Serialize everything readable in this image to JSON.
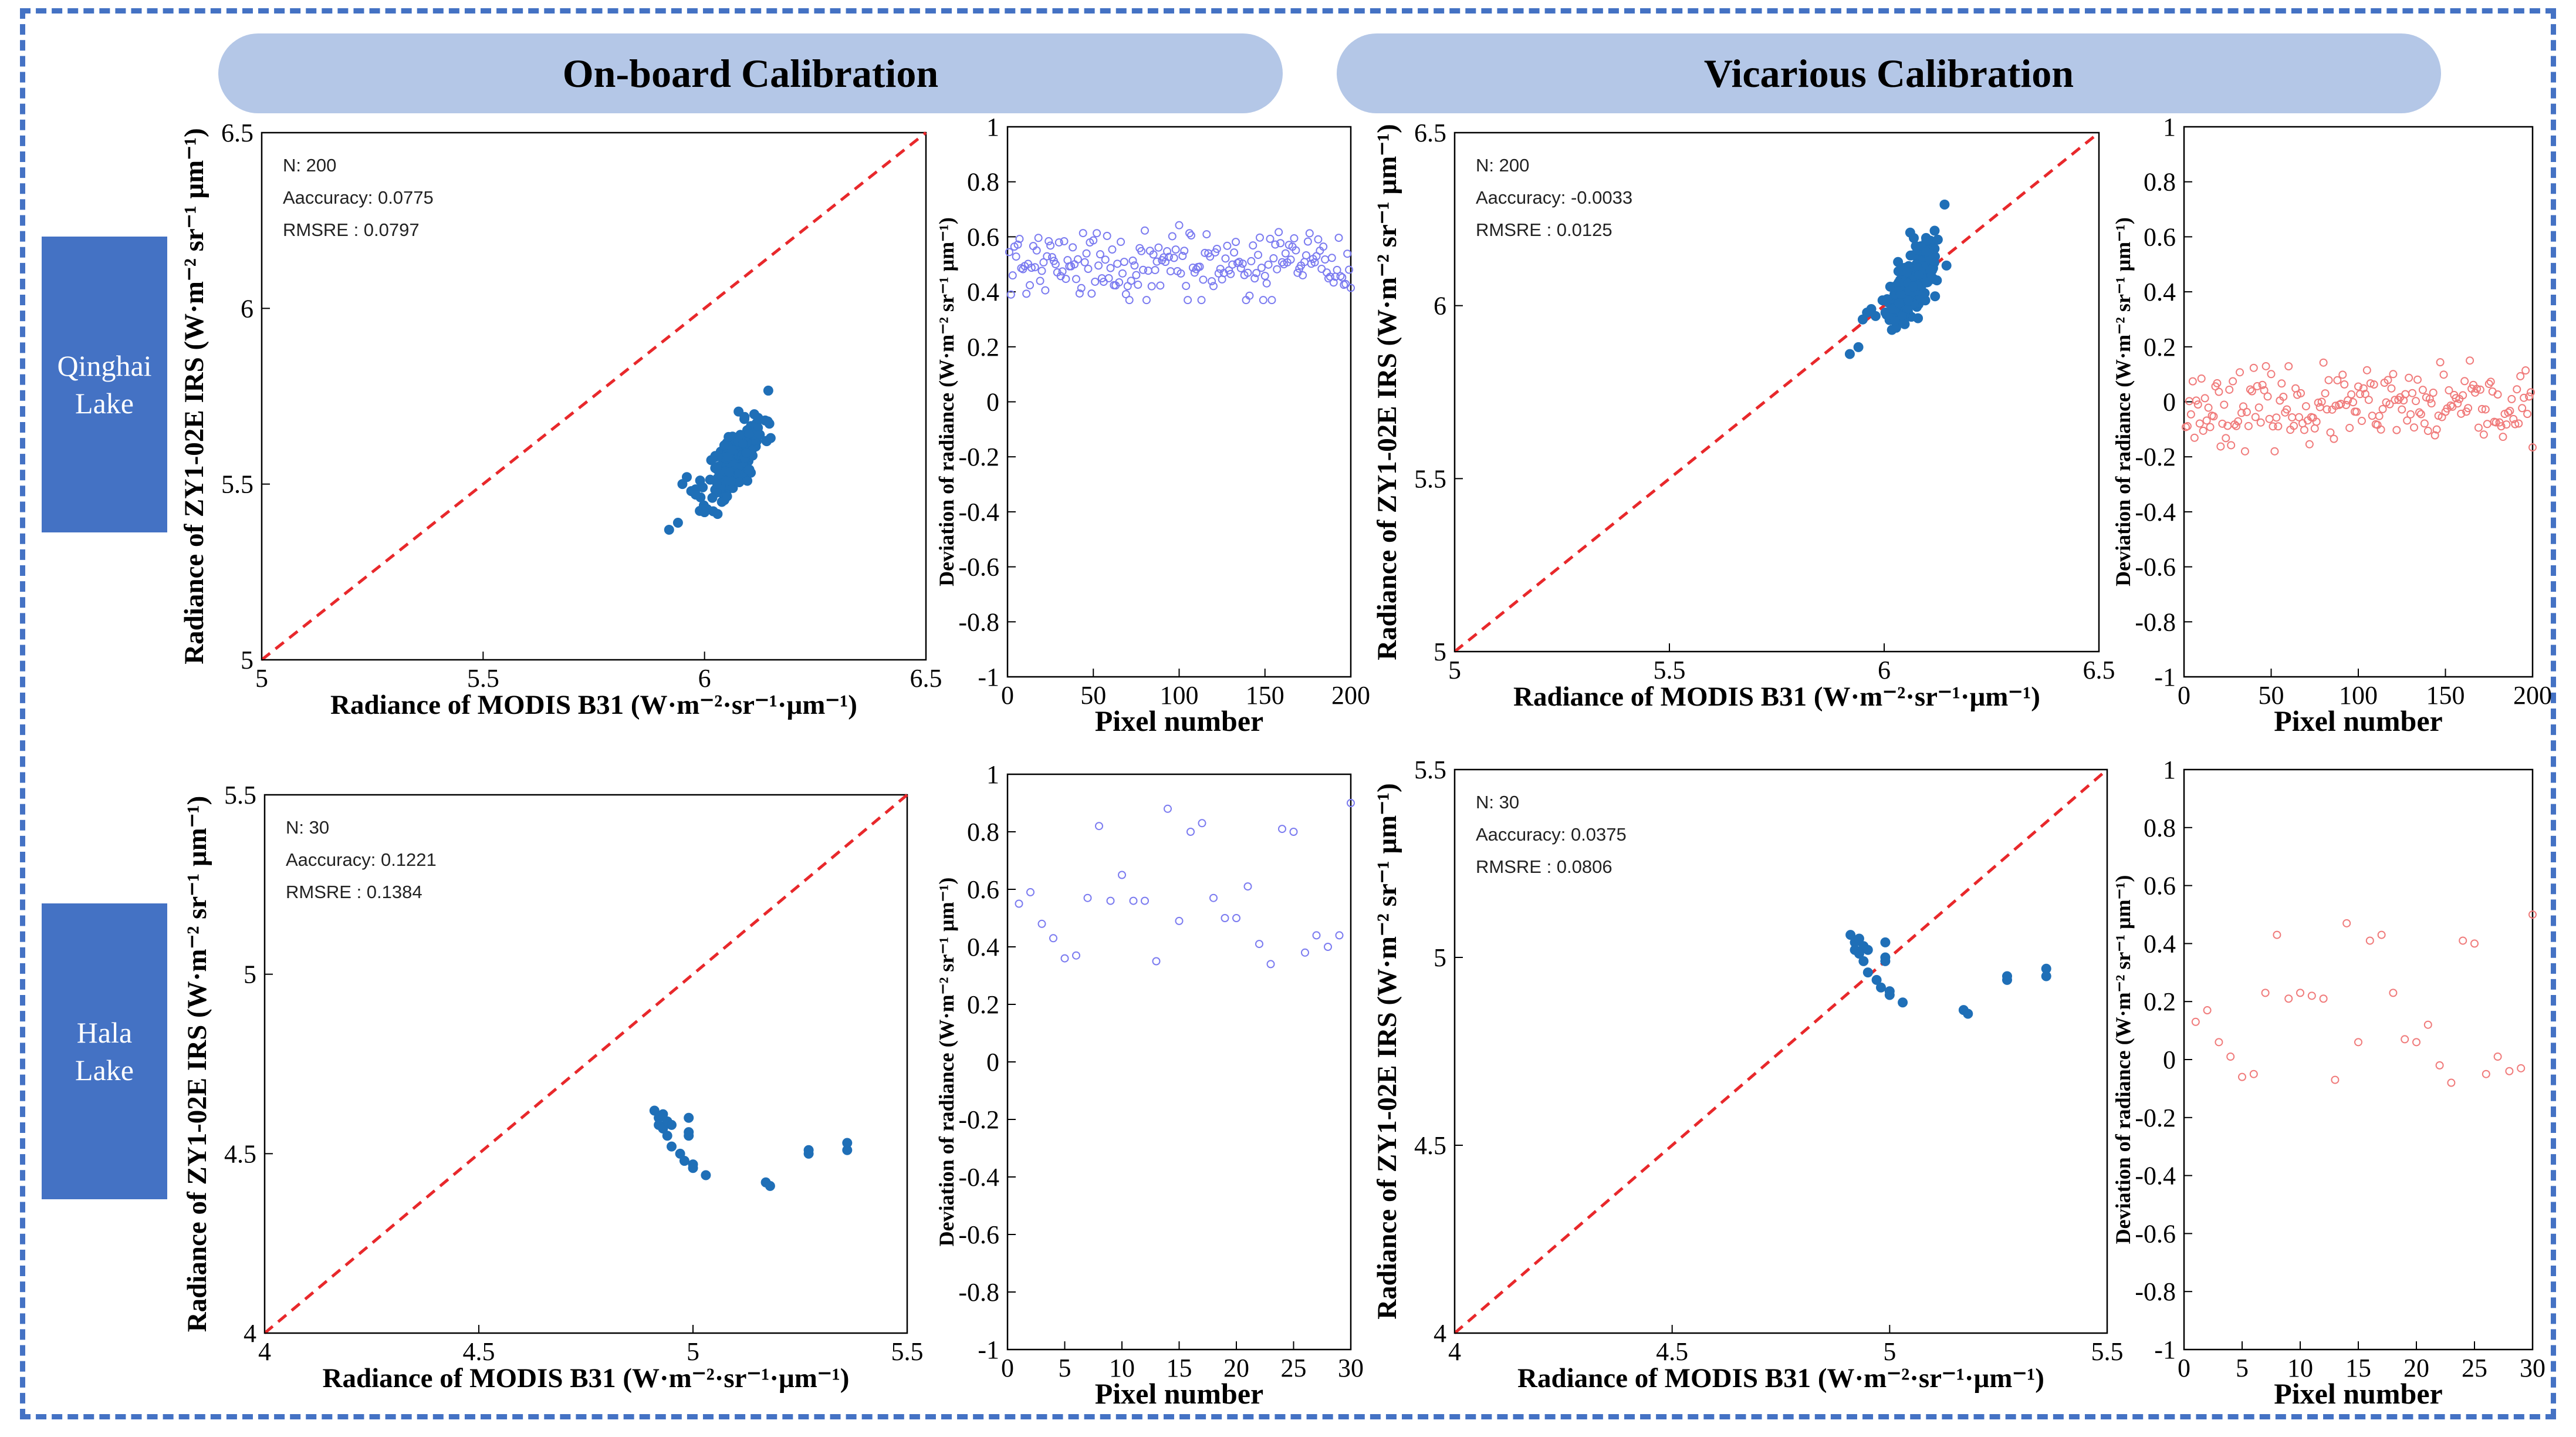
{
  "headers": {
    "onboard": "On-board Calibration",
    "vicarious": "Vicarious Calibration"
  },
  "rows": {
    "qinghai": [
      "Qinghai",
      "Lake"
    ],
    "hala": [
      "Hala",
      "Lake"
    ]
  },
  "colors": {
    "frame": "#4472c4",
    "header_fill": "#b4c7e7",
    "row_label_fill": "#4472c4",
    "scatter": "#1f6fb7",
    "identity_line": "#e8282b",
    "deviation_onboard": "#7b7bf0",
    "deviation_vicarious": "#f07b7b"
  },
  "chart_data": [
    {
      "id": "qinghai-onboard-scatter",
      "type": "scatter",
      "xlabel": "Radiance of MODIS B31 (W·m⁻²·sr⁻¹·μm⁻¹)",
      "ylabel": "Radiance of ZY1-02E IRS (W·m⁻² sr⁻¹ μm⁻¹)",
      "xlim": [
        5,
        6.5
      ],
      "ylim": [
        5,
        6.5
      ],
      "xticks": [
        5,
        5.5,
        6,
        6.5
      ],
      "yticks": [
        5,
        5.5,
        6,
        6.5
      ],
      "identity_line": true,
      "stats": [
        "N: 200",
        "Aaccuracy: 0.0775",
        "RMSRE : 0.0797"
      ],
      "cluster": {
        "n": 200,
        "x_center": 6.07,
        "x_spread": 0.032,
        "y_center": 5.57,
        "y_spread": 0.075,
        "slope": 1.4,
        "seed": 11
      },
      "points": [
        [
          5.92,
          5.37
        ],
        [
          5.94,
          5.39
        ],
        [
          5.95,
          5.5
        ],
        [
          5.96,
          5.52
        ],
        [
          5.97,
          5.48
        ],
        [
          5.98,
          5.47
        ],
        [
          5.99,
          5.51
        ],
        [
          6.0,
          5.42
        ]
      ]
    },
    {
      "id": "qinghai-onboard-deviation",
      "type": "scatter",
      "xlabel": "Pixel number",
      "ylabel": "Deviation of radiance (W·m⁻² sr⁻¹ μm⁻¹)",
      "xlim": [
        0,
        200
      ],
      "ylim": [
        -1,
        1
      ],
      "xticks": [
        0,
        50,
        100,
        150,
        200
      ],
      "yticks": [
        -1,
        -0.8,
        -0.6,
        -0.4,
        -0.2,
        0,
        0.2,
        0.4,
        0.6,
        0.8,
        1
      ],
      "marker": "open-circle",
      "noise": {
        "n": 200,
        "center": 0.5,
        "spread": 0.065,
        "min": 0.37,
        "max": 0.66,
        "seed": 21
      }
    },
    {
      "id": "qinghai-vicarious-scatter",
      "type": "scatter",
      "xlabel": "Radiance of MODIS B31 (W·m⁻²·sr⁻¹·μm⁻¹)",
      "ylabel": "Radiance of ZY1-02E IRS (W·m⁻² sr⁻¹ μm⁻¹)",
      "xlim": [
        5,
        6.5
      ],
      "ylim": [
        5,
        6.5
      ],
      "xticks": [
        5,
        5.5,
        6,
        6.5
      ],
      "yticks": [
        5,
        5.5,
        6,
        6.5
      ],
      "identity_line": true,
      "stats": [
        "N: 200",
        "Aaccuracy: -0.0033",
        "RMSRE : 0.0125"
      ],
      "cluster": {
        "n": 200,
        "x_center": 6.07,
        "x_spread": 0.032,
        "y_center": 6.07,
        "y_spread": 0.075,
        "slope": 1.4,
        "seed": 13
      },
      "points": [
        [
          5.92,
          5.86
        ],
        [
          5.94,
          5.88
        ],
        [
          5.95,
          5.96
        ],
        [
          5.96,
          5.98
        ],
        [
          5.97,
          5.99
        ],
        [
          5.98,
          5.97
        ]
      ]
    },
    {
      "id": "qinghai-vicarious-deviation",
      "type": "scatter",
      "xlabel": "Pixel number",
      "ylabel": "Deviation of radiance (W·m⁻² sr⁻¹ μm⁻¹)",
      "xlim": [
        0,
        200
      ],
      "ylim": [
        -1,
        1
      ],
      "xticks": [
        0,
        50,
        100,
        150,
        200
      ],
      "yticks": [
        -1,
        -0.8,
        -0.6,
        -0.4,
        -0.2,
        0,
        0.2,
        0.4,
        0.6,
        0.8,
        1
      ],
      "marker": "open-circle",
      "noise": {
        "n": 200,
        "center": -0.02,
        "spread": 0.065,
        "min": -0.18,
        "max": 0.15,
        "seed": 23
      }
    },
    {
      "id": "hala-onboard-scatter",
      "type": "scatter",
      "xlabel": "Radiance of MODIS B31 (W·m⁻²·sr⁻¹·μm⁻¹)",
      "ylabel": "Radiance of ZY1-02E IRS (W·m⁻² sr⁻¹ μm⁻¹)",
      "xlim": [
        4,
        5.5
      ],
      "ylim": [
        4,
        5.5
      ],
      "xticks": [
        4,
        4.5,
        5,
        5.5
      ],
      "yticks": [
        4,
        4.5,
        5,
        5.5
      ],
      "identity_line": true,
      "stats": [
        "N: 30",
        "Aaccuracy: 0.1221",
        "RMSRE : 0.1384"
      ],
      "points": [
        [
          4.91,
          4.62
        ],
        [
          4.92,
          4.6
        ],
        [
          4.92,
          4.58
        ],
        [
          4.93,
          4.61
        ],
        [
          4.93,
          4.57
        ],
        [
          4.94,
          4.59
        ],
        [
          4.94,
          4.55
        ],
        [
          4.95,
          4.52
        ],
        [
          4.95,
          4.58
        ],
        [
          4.97,
          4.5
        ],
        [
          4.98,
          4.48
        ],
        [
          4.99,
          4.55
        ],
        [
          4.99,
          4.56
        ],
        [
          4.99,
          4.6
        ],
        [
          5.0,
          4.47
        ],
        [
          5.0,
          4.46
        ],
        [
          5.03,
          4.44
        ],
        [
          5.17,
          4.42
        ],
        [
          5.18,
          4.41
        ],
        [
          5.27,
          4.5
        ],
        [
          5.27,
          4.51
        ],
        [
          5.36,
          4.51
        ],
        [
          5.36,
          4.53
        ]
      ]
    },
    {
      "id": "hala-onboard-deviation",
      "type": "scatter",
      "xlabel": "Pixel number",
      "ylabel": "Deviation of radiance (W·m⁻² sr⁻¹ μm⁻¹)",
      "xlim": [
        0,
        30
      ],
      "ylim": [
        -1,
        1
      ],
      "xticks": [
        0,
        5,
        10,
        15,
        20,
        25,
        30
      ],
      "yticks": [
        -1,
        -0.8,
        -0.6,
        -0.4,
        -0.2,
        0,
        0.2,
        0.4,
        0.6,
        0.8,
        1
      ],
      "marker": "open-circle",
      "points": [
        [
          1,
          0.55
        ],
        [
          2,
          0.59
        ],
        [
          3,
          0.48
        ],
        [
          4,
          0.43
        ],
        [
          5,
          0.36
        ],
        [
          6,
          0.37
        ],
        [
          7,
          0.57
        ],
        [
          8,
          0.82
        ],
        [
          9,
          0.56
        ],
        [
          10,
          0.65
        ],
        [
          11,
          0.56
        ],
        [
          12,
          0.56
        ],
        [
          13,
          0.35
        ],
        [
          14,
          0.88
        ],
        [
          15,
          0.49
        ],
        [
          16,
          0.8
        ],
        [
          17,
          0.83
        ],
        [
          18,
          0.57
        ],
        [
          19,
          0.5
        ],
        [
          20,
          0.5
        ],
        [
          21,
          0.61
        ],
        [
          22,
          0.41
        ],
        [
          23,
          0.34
        ],
        [
          24,
          0.81
        ],
        [
          25,
          0.8
        ],
        [
          26,
          0.38
        ],
        [
          27,
          0.44
        ],
        [
          28,
          0.4
        ],
        [
          29,
          0.44
        ],
        [
          30,
          0.9
        ]
      ]
    },
    {
      "id": "hala-vicarious-scatter",
      "type": "scatter",
      "xlabel": "Radiance of MODIS B31 (W·m⁻²·sr⁻¹·μm⁻¹)",
      "ylabel": "Radiance of ZY1-02E IRS (W·m⁻² sr⁻¹ μm⁻¹)",
      "xlim": [
        4,
        5.5
      ],
      "ylim": [
        4,
        5.5
      ],
      "xticks": [
        4,
        4.5,
        5,
        5.5
      ],
      "yticks": [
        4,
        4.5,
        5,
        5.5
      ],
      "identity_line": true,
      "stats": [
        "N: 30",
        "Aaccuracy: 0.0375",
        "RMSRE : 0.0806"
      ],
      "points": [
        [
          4.91,
          5.06
        ],
        [
          4.92,
          5.04
        ],
        [
          4.92,
          5.02
        ],
        [
          4.93,
          5.05
        ],
        [
          4.93,
          5.01
        ],
        [
          4.94,
          5.03
        ],
        [
          4.94,
          4.99
        ],
        [
          4.95,
          4.96
        ],
        [
          4.95,
          5.02
        ],
        [
          4.97,
          4.94
        ],
        [
          4.98,
          4.92
        ],
        [
          4.99,
          4.99
        ],
        [
          4.99,
          5.0
        ],
        [
          4.99,
          5.04
        ],
        [
          5.0,
          4.91
        ],
        [
          5.0,
          4.9
        ],
        [
          5.03,
          4.88
        ],
        [
          5.17,
          4.86
        ],
        [
          5.18,
          4.85
        ],
        [
          5.27,
          4.94
        ],
        [
          5.27,
          4.95
        ],
        [
          5.36,
          4.95
        ],
        [
          5.36,
          4.97
        ]
      ]
    },
    {
      "id": "hala-vicarious-deviation",
      "type": "scatter",
      "xlabel": "Pixel number",
      "ylabel": "Deviation of radiance (W·m⁻² sr⁻¹ μm⁻¹)",
      "xlim": [
        0,
        30
      ],
      "ylim": [
        -1,
        1
      ],
      "xticks": [
        0,
        5,
        10,
        15,
        20,
        25,
        30
      ],
      "yticks": [
        -1,
        -0.8,
        -0.6,
        -0.4,
        -0.2,
        0,
        0.2,
        0.4,
        0.6,
        0.8,
        1
      ],
      "marker": "open-circle",
      "points": [
        [
          1,
          0.13
        ],
        [
          2,
          0.17
        ],
        [
          3,
          0.06
        ],
        [
          4,
          0.01
        ],
        [
          5,
          -0.06
        ],
        [
          6,
          -0.05
        ],
        [
          7,
          0.23
        ],
        [
          8,
          0.43
        ],
        [
          9,
          0.21
        ],
        [
          10,
          0.23
        ],
        [
          11,
          0.22
        ],
        [
          12,
          0.21
        ],
        [
          13,
          -0.07
        ],
        [
          14,
          0.47
        ],
        [
          15,
          0.06
        ],
        [
          16,
          0.41
        ],
        [
          17,
          0.43
        ],
        [
          18,
          0.23
        ],
        [
          19,
          0.07
        ],
        [
          20,
          0.06
        ],
        [
          21,
          0.12
        ],
        [
          22,
          -0.02
        ],
        [
          23,
          -0.08
        ],
        [
          24,
          0.41
        ],
        [
          25,
          0.4
        ],
        [
          26,
          -0.05
        ],
        [
          27,
          0.01
        ],
        [
          28,
          -0.04
        ],
        [
          29,
          -0.03
        ],
        [
          30,
          0.5
        ]
      ]
    }
  ]
}
